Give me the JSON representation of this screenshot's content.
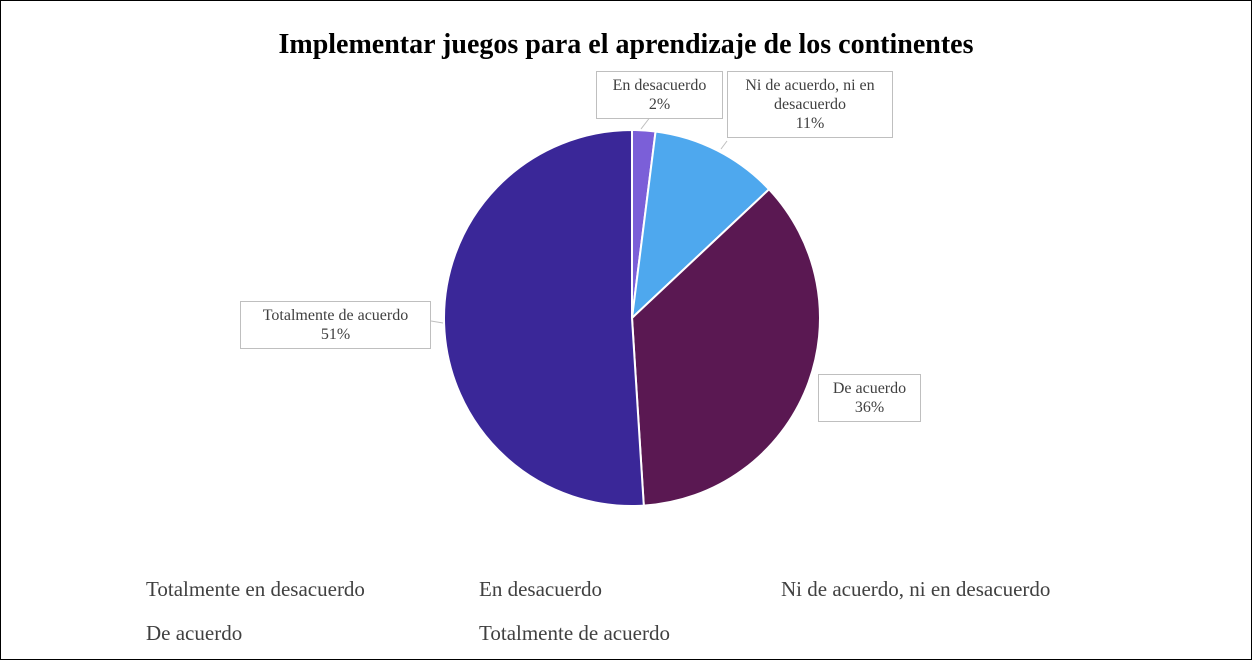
{
  "chart_data": {
    "type": "pie",
    "title": "Implementar juegos para el aprendizaje de los continentes",
    "categories": [
      "Totalmente en desacuerdo",
      "En desacuerdo",
      "Ni de acuerdo, ni en desacuerdo",
      "De acuerdo",
      "Totalmente de acuerdo"
    ],
    "values": [
      0,
      2,
      11,
      36,
      51
    ],
    "value_labels": [
      null,
      "2%",
      "11%",
      "36%",
      "51%"
    ],
    "colors": [
      "#8e3d9e",
      "#7b5fd8",
      "#4ea8ee",
      "#5a1852",
      "#3a2798"
    ],
    "legend": "bottom"
  }
}
